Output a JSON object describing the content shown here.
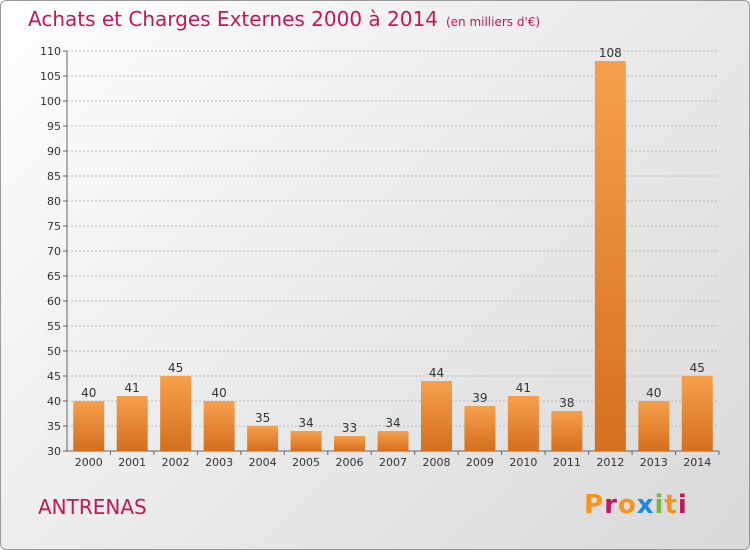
{
  "title": "Achats et Charges Externes 2000 à 2014",
  "unit_note": "(en milliers d'€)",
  "commune": "ANTRENAS",
  "logo": {
    "text": "Proxiti",
    "colors": [
      "#f7941d",
      "#c2185b",
      "#f7941d",
      "#1e88e5",
      "#7cb342",
      "#f7941d",
      "#c2185b"
    ]
  },
  "colors": {
    "bar_light": "#f6a04d",
    "bar_dark": "#d46f1e",
    "title": "#c2185b",
    "grid": "#bcbcbc"
  },
  "chart_data": {
    "type": "bar",
    "title": "Achats et Charges Externes 2000 à 2014",
    "subtitle": "(en milliers d'€)",
    "xlabel": "",
    "ylabel": "",
    "categories": [
      "2000",
      "2001",
      "2002",
      "2003",
      "2004",
      "2005",
      "2006",
      "2007",
      "2008",
      "2009",
      "2010",
      "2011",
      "2012",
      "2013",
      "2014"
    ],
    "values": [
      40,
      41,
      45,
      40,
      35,
      34,
      33,
      34,
      44,
      39,
      41,
      38,
      108,
      40,
      45
    ],
    "ylim": [
      30,
      110
    ],
    "yticks": [
      30,
      35,
      40,
      45,
      50,
      55,
      60,
      65,
      70,
      75,
      80,
      85,
      90,
      95,
      100,
      105,
      110
    ],
    "grid": true
  }
}
